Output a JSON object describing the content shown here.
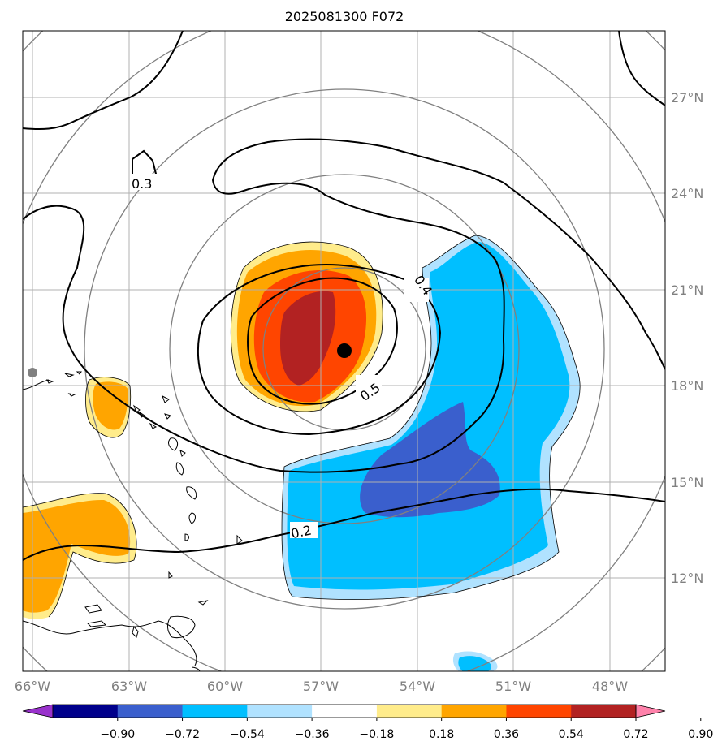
{
  "title": "2025081300 F072",
  "lon_ticks": [
    "66°W",
    "63°W",
    "60°W",
    "57°W",
    "54°W",
    "51°W",
    "48°W"
  ],
  "lat_ticks": [
    "27°N",
    "24°N",
    "21°N",
    "18°N",
    "15°N",
    "12°N"
  ],
  "contour_labels": [
    "0.3",
    "0.4",
    "0.5",
    "0.2"
  ],
  "colorbar": {
    "labels": [
      "−0.90",
      "−0.72",
      "−0.54",
      "−0.36",
      "−0.18",
      "0.18",
      "0.36",
      "0.54",
      "0.72",
      "0.90"
    ],
    "colors": [
      "#9932cc",
      "#00008b",
      "#3a5fcd",
      "#00bfff",
      "#b0e2ff",
      "#ffffff",
      "#ffec8b",
      "#ffa500",
      "#ff4500",
      "#b22222",
      "#ff82ab"
    ]
  },
  "colors": {
    "land_outline": "#000000",
    "range_ring": "#808080",
    "gridline": "#b0b0b0",
    "center_marker": "#000000"
  },
  "icons": [
    "storm-center-marker",
    "station-dot"
  ]
}
